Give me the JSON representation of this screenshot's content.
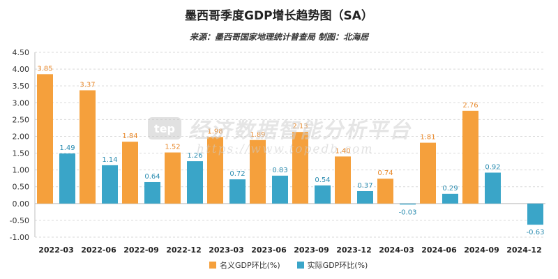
{
  "colors": {
    "nominal": "#F5A03C",
    "real": "#3AA5C8",
    "nominal_label": "#E8882A",
    "real_label": "#2B8CB0"
  },
  "watermark": {
    "logo": "tep",
    "text": "经济数据智能分析平台",
    "url": "https://www.topedb.com"
  },
  "chart_data": {
    "type": "bar",
    "title": "墨西哥季度GDP增长趋势图（SA）",
    "subtitle": "来源：墨西哥国家地理统计普查局 制图：北海居",
    "categories": [
      "2022-03",
      "2022-06",
      "2022-09",
      "2022-12",
      "2023-03",
      "2023-06",
      "2023-09",
      "2023-12",
      "2024-03",
      "2024-06",
      "2024-09",
      "2024-12"
    ],
    "series": [
      {
        "name": "名义GDP环比(%)",
        "values": [
          3.85,
          3.37,
          1.84,
          1.52,
          1.98,
          1.89,
          2.13,
          1.4,
          0.74,
          1.81,
          2.76,
          null
        ]
      },
      {
        "name": "实际GDP环比(%)",
        "values": [
          1.49,
          1.14,
          0.64,
          1.26,
          0.72,
          0.83,
          0.54,
          0.37,
          -0.03,
          0.29,
          0.92,
          -0.63
        ]
      }
    ],
    "ylim": [
      -1.0,
      4.5
    ],
    "yticks": [
      "-1.00",
      "-0.50",
      "0.00",
      "0.50",
      "1.00",
      "1.50",
      "2.00",
      "2.50",
      "3.00",
      "3.50",
      "4.00",
      "4.50"
    ],
    "grid": true,
    "legend": "bottom-center"
  }
}
